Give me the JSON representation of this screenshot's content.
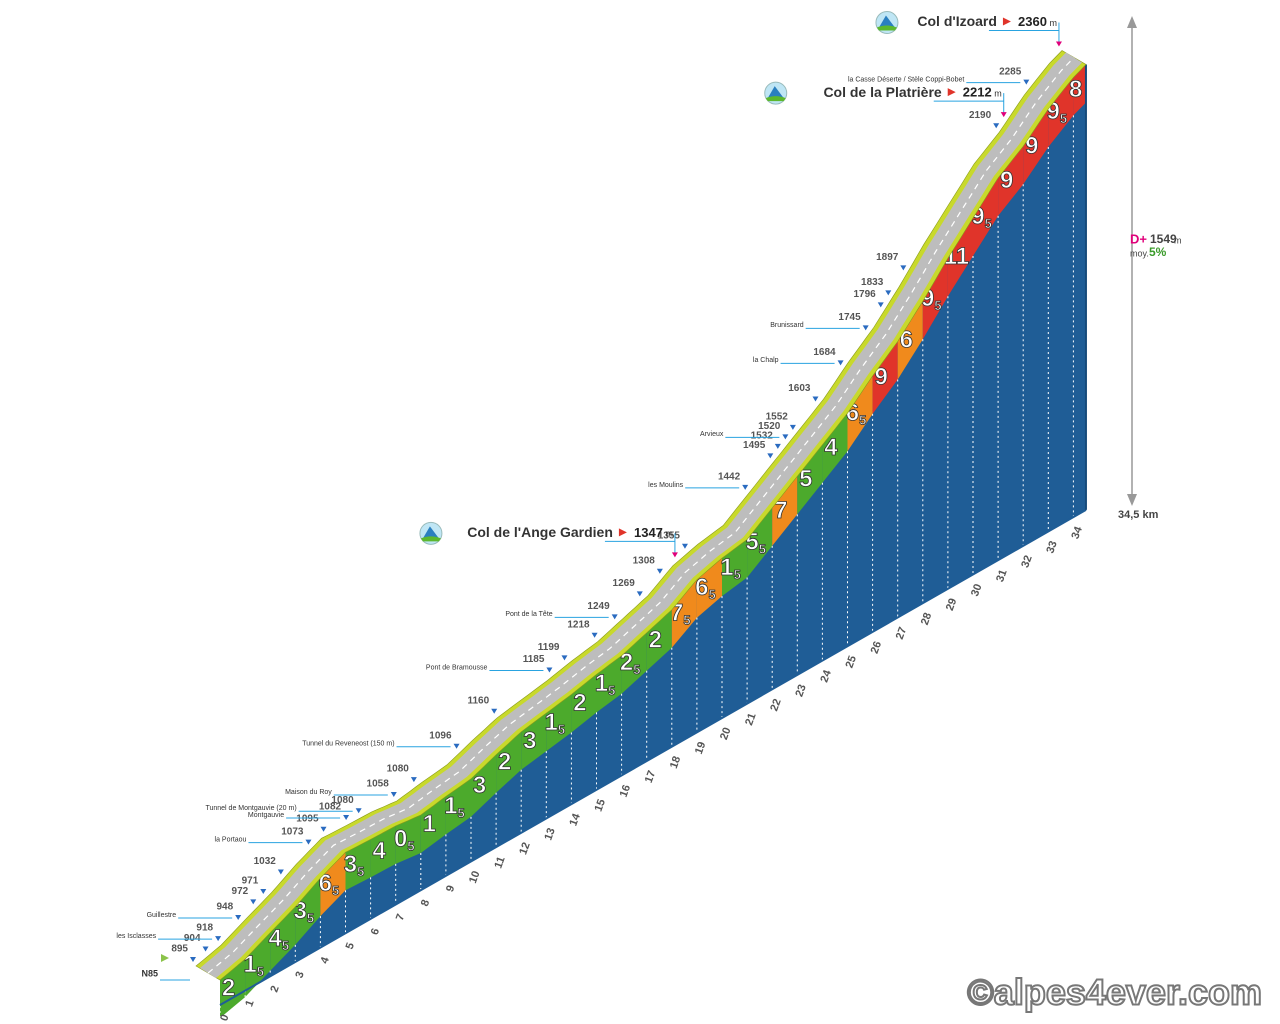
{
  "profile": {
    "km": [
      0,
      1,
      2,
      3,
      4,
      5,
      6,
      7,
      8,
      9,
      10,
      11,
      12,
      13,
      14,
      15,
      16,
      17,
      18,
      19,
      20,
      21,
      22,
      23,
      24,
      25,
      26,
      27,
      28,
      29,
      30,
      31,
      32,
      33,
      34,
      34.5
    ],
    "altitude": [
      895,
      918,
      960,
      1000,
      1050,
      1090,
      1085,
      1082,
      1070,
      1085,
      1096,
      1130,
      1160,
      1175,
      1190,
      1210,
      1225,
      1255,
      1285,
      1340,
      1365,
      1380,
      1440,
      1500,
      1560,
      1620,
      1700,
      1770,
      1860,
      1960,
      2050,
      2140,
      2200,
      2280,
      2340,
      2360
    ]
  },
  "km_labels": [
    0,
    1,
    2,
    3,
    4,
    5,
    6,
    7,
    8,
    9,
    10,
    11,
    12,
    13,
    14,
    15,
    16,
    17,
    18,
    19,
    20,
    21,
    22,
    23,
    24,
    25,
    26,
    27,
    28,
    29,
    30,
    31,
    32,
    33,
    34
  ],
  "end_km": "34,5 km",
  "gradients": [
    2,
    1.5,
    4.5,
    3.5,
    6.5,
    3.5,
    4,
    0.5,
    1,
    1.5,
    3,
    2,
    3,
    1.5,
    2,
    1.5,
    2.5,
    2,
    7.5,
    6.5,
    1.5,
    5.5,
    7,
    5,
    4,
    6.5,
    9,
    6,
    9.5,
    11,
    9.5,
    9,
    9,
    9.5,
    8
  ],
  "road": "N85",
  "waypoints": [
    {
      "km": 0,
      "alt": 895
    },
    {
      "km": 0.5,
      "alt": 904
    },
    {
      "km": 1,
      "alt": 918,
      "name": "les Isclasses"
    },
    {
      "km": 1.8,
      "alt": 948,
      "name": "Guillestre"
    },
    {
      "km": 2.4,
      "alt": 972
    },
    {
      "km": 2.8,
      "alt": 971
    },
    {
      "km": 3.5,
      "alt": 1032
    },
    {
      "km": 4.6,
      "alt": 1073,
      "name": "la Portaou"
    },
    {
      "km": 5.2,
      "alt": 1095
    },
    {
      "km": 6.1,
      "alt": 1082,
      "name": "Montgauvie"
    },
    {
      "km": 6.6,
      "alt": 1080,
      "name": "Tunnel de Montgauvie (20 m)"
    },
    {
      "km": 8,
      "alt": 1058,
      "name": "Maison du Roy"
    },
    {
      "km": 8.8,
      "alt": 1080
    },
    {
      "km": 10.5,
      "alt": 1096,
      "name": "Tunnel du Reveneost (150 m)"
    },
    {
      "km": 12,
      "alt": 1160
    },
    {
      "km": 14.2,
      "alt": 1185,
      "name": "Pont de Bramousse"
    },
    {
      "km": 14.8,
      "alt": 1199
    },
    {
      "km": 16,
      "alt": 1218
    },
    {
      "km": 16.8,
      "alt": 1249,
      "name": "Pont de la Tête"
    },
    {
      "km": 17.8,
      "alt": 1269
    },
    {
      "km": 18.6,
      "alt": 1308
    },
    {
      "km": 19.6,
      "alt": 1355
    },
    {
      "km": 22,
      "alt": 1442,
      "name": "les Moulins"
    },
    {
      "km": 23,
      "alt": 1495
    },
    {
      "km": 23.3,
      "alt": 1532
    },
    {
      "km": 23.6,
      "alt": 1520,
      "name": "Arvieux"
    },
    {
      "km": 23.9,
      "alt": 1552
    },
    {
      "km": 24.8,
      "alt": 1603
    },
    {
      "km": 25.8,
      "alt": 1684,
      "name": "la Chalp"
    },
    {
      "km": 26.8,
      "alt": 1745,
      "name": "Brunissard"
    },
    {
      "km": 27.4,
      "alt": 1796
    },
    {
      "km": 27.7,
      "alt": 1833
    },
    {
      "km": 28.3,
      "alt": 1897
    },
    {
      "km": 32,
      "alt": 2190
    },
    {
      "km": 33.2,
      "alt": 2285,
      "name": "la Casse Déserte / Stèle Coppi-Bobet"
    }
  ],
  "cols": [
    {
      "name": "Col de l'Ange Gardien",
      "altitude": 1347,
      "km": 19.2
    },
    {
      "name": "Col de la Platrière",
      "altitude": 2212,
      "km": 32.3
    },
    {
      "name": "Col d'Izoard",
      "altitude": 2360,
      "km": 34.5
    }
  ],
  "unit": "m",
  "stats": {
    "d_plus_label": "D+",
    "d_plus": 1549,
    "unit": "m",
    "avg_label": "moy.",
    "avg": "5%"
  },
  "copyright": "©alpes4ever.com"
}
